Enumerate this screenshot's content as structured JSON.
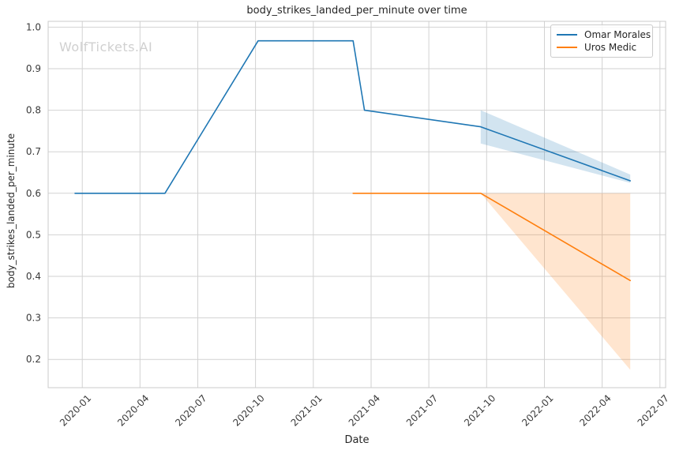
{
  "watermark": {
    "text": "WolfTickets.AI"
  },
  "legend": {
    "position": "upper right"
  },
  "colors": {
    "background": "#ffffff",
    "grid": "#d2d2d2",
    "spine": "#cbcbcb",
    "tick_text": "#3b3b3b",
    "title_text": "#262626",
    "watermark_text": "#d0d0d0",
    "legend_border": "#cccccc"
  },
  "chart_data": {
    "type": "line",
    "title": "body_strikes_landed_per_minute over time",
    "xlabel": "Date",
    "ylabel": "body_strikes_landed_per_minute",
    "grid": true,
    "legend_position": "upper right",
    "xlim": [
      "2019-11-08",
      "2022-07-10"
    ],
    "ylim": [
      0.132,
      1.014
    ],
    "x_ticklabels": [
      "2020-01",
      "2020-04",
      "2020-07",
      "2020-10",
      "2021-01",
      "2021-04",
      "2021-07",
      "2021-10",
      "2022-01",
      "2022-04",
      "2022-07"
    ],
    "y_ticks": [
      0.2,
      0.3,
      0.4,
      0.5,
      0.6,
      0.7,
      0.8,
      0.9,
      1.0
    ],
    "series": [
      {
        "name": "Omar Morales",
        "color": "#1f77b4",
        "line_width": 1.6,
        "points": [
          [
            "2019-12-20",
            0.6
          ],
          [
            "2020-05-10",
            0.6
          ],
          [
            "2020-10-05",
            0.967
          ],
          [
            "2021-03-03",
            0.967
          ],
          [
            "2021-03-21",
            0.8
          ],
          [
            "2021-09-22",
            0.76
          ],
          [
            "2022-05-15",
            0.63
          ]
        ],
        "band": {
          "x": [
            "2021-09-22",
            "2022-05-15"
          ],
          "upper": [
            0.8,
            0.645
          ],
          "lower": [
            0.72,
            0.625
          ],
          "alpha": 0.2
        }
      },
      {
        "name": "Uros Medic",
        "color": "#ff7f0e",
        "line_width": 1.6,
        "points": [
          [
            "2021-03-03",
            0.6
          ],
          [
            "2021-09-22",
            0.6
          ],
          [
            "2022-05-15",
            0.39
          ]
        ],
        "band": {
          "x": [
            "2021-09-22",
            "2022-05-15"
          ],
          "upper": [
            0.6,
            0.6
          ],
          "lower": [
            0.6,
            0.175
          ],
          "alpha": 0.2
        }
      }
    ]
  }
}
